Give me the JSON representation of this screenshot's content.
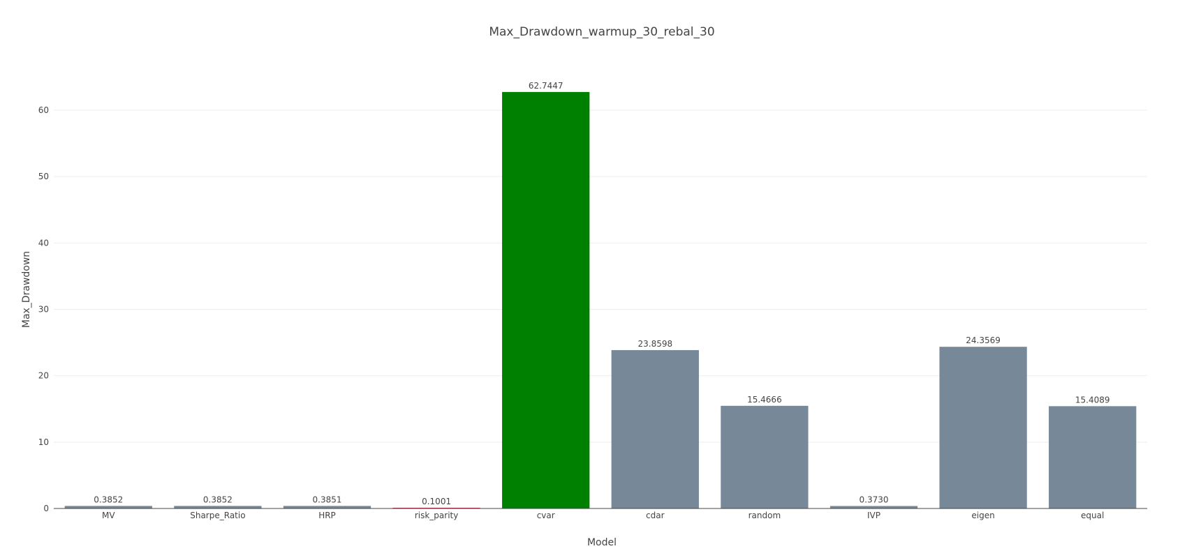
{
  "chart_data": {
    "type": "bar",
    "title": "Max_Drawdown_warmup_30_rebal_30",
    "xlabel": "Model",
    "ylabel": "Max_Drawdown",
    "ylim": [
      0,
      65
    ],
    "yticks": [
      0,
      10,
      20,
      30,
      40,
      50,
      60
    ],
    "grid": true,
    "categories": [
      "MV",
      "Sharpe_Ratio",
      "HRP",
      "risk_parity",
      "cvar",
      "cdar",
      "random",
      "IVP",
      "eigen",
      "equal"
    ],
    "values": [
      0.3852,
      0.3852,
      0.3851,
      0.1001,
      62.7447,
      23.8598,
      15.4666,
      0.373,
      24.3569,
      15.4089
    ],
    "value_labels": [
      "0.3852",
      "0.3852",
      "0.3851",
      "0.1001",
      "62.7447",
      "23.8598",
      "15.4666",
      "0.3730",
      "24.3569",
      "15.4089"
    ],
    "colors": [
      "#778899",
      "#778899",
      "#778899",
      "#DC143C",
      "#008000",
      "#778899",
      "#778899",
      "#778899",
      "#778899",
      "#778899"
    ]
  }
}
